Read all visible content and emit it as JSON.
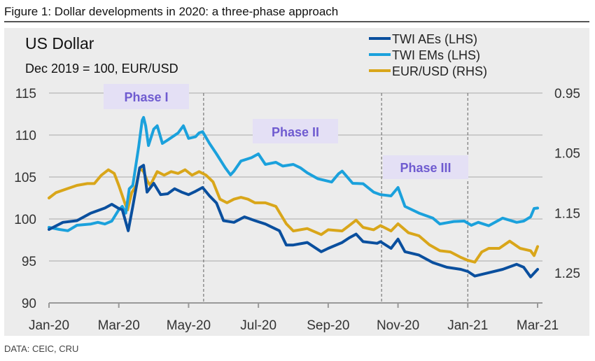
{
  "figure_title": "Figure 1: Dollar developments in 2020: a three-phase approach",
  "source": "DATA: CEIC, CRU",
  "colors": {
    "twi_aes": "#0a4f9e",
    "twi_ems": "#1ba1dc",
    "eurusd": "#d9a61a",
    "phase_box": "#e4e0f5",
    "phase_text": "#6f5bd0",
    "background": "#ececec"
  },
  "chart_data": {
    "type": "line",
    "title": "US Dollar",
    "subtitle": "Dec 2019 = 100, EUR/USD",
    "x_unit": "months since Jan-2020",
    "x_tick_labels": [
      "Jan-20",
      "Mar-20",
      "May-20",
      "Jul-20",
      "Sep-20",
      "Nov-20",
      "Jan-21",
      "Mar-21"
    ],
    "x_ticks": [
      0,
      2,
      4,
      6,
      8,
      10,
      12,
      14
    ],
    "xlim": [
      0,
      14
    ],
    "y_left": {
      "ticks": [
        90,
        95,
        100,
        105,
        110,
        115
      ],
      "tick_labels": [
        "90",
        "95",
        "100",
        "105",
        "110",
        "115"
      ],
      "ylim": [
        90,
        115
      ]
    },
    "y_right": {
      "ticks": [
        0.95,
        1.05,
        1.15,
        1.25
      ],
      "tick_labels": [
        "0.95",
        "1.05",
        "1.15",
        "1.25"
      ],
      "ylim": [
        0.95,
        1.3
      ],
      "inverted": true
    },
    "grid": true,
    "legend_position": "top-right",
    "legend": [
      "TWI AEs (LHS)",
      "TWI EMs (LHS)",
      "EUR/USD (RHS)"
    ],
    "phase_dividers": [
      4.43,
      9.53,
      12.0
    ],
    "annotations": [
      "Phase I",
      "Phase II",
      "Phase III"
    ],
    "series": [
      {
        "name": "TWI AEs (LHS)",
        "axis": "left",
        "points": [
          [
            0,
            98.75
          ],
          [
            0.4,
            99.6
          ],
          [
            0.8,
            99.8
          ],
          [
            1.2,
            100.7
          ],
          [
            1.6,
            101.3
          ],
          [
            1.8,
            101.75
          ],
          [
            2.0,
            101.25
          ],
          [
            2.1,
            101.1
          ],
          [
            2.27,
            98.6
          ],
          [
            2.4,
            101.5
          ],
          [
            2.6,
            106.1
          ],
          [
            2.71,
            106.4
          ],
          [
            2.81,
            103.2
          ],
          [
            3.0,
            104.25
          ],
          [
            3.2,
            102.9
          ],
          [
            3.4,
            103
          ],
          [
            3.6,
            103.6
          ],
          [
            3.8,
            103.2
          ],
          [
            4.0,
            102.9
          ],
          [
            4.2,
            103.3
          ],
          [
            4.4,
            103.75
          ],
          [
            4.6,
            102.75
          ],
          [
            4.8,
            101.9
          ],
          [
            5.0,
            99.8
          ],
          [
            5.3,
            99.6
          ],
          [
            5.6,
            100.25
          ],
          [
            5.9,
            99.8
          ],
          [
            6.2,
            99.4
          ],
          [
            6.6,
            98.6
          ],
          [
            6.8,
            96.9
          ],
          [
            7.0,
            96.9
          ],
          [
            7.4,
            97.2
          ],
          [
            7.8,
            96.1
          ],
          [
            8.0,
            96.5
          ],
          [
            8.4,
            97.2
          ],
          [
            8.6,
            97.75
          ],
          [
            8.8,
            98.2
          ],
          [
            9.0,
            97.3
          ],
          [
            9.4,
            97.1
          ],
          [
            9.5,
            97.3
          ],
          [
            9.8,
            96.5
          ],
          [
            10.0,
            97.6
          ],
          [
            10.2,
            96.1
          ],
          [
            10.6,
            95.7
          ],
          [
            11.0,
            94.8
          ],
          [
            11.4,
            94.25
          ],
          [
            11.8,
            94
          ],
          [
            12.0,
            93.75
          ],
          [
            12.2,
            93.2
          ],
          [
            12.6,
            93.6
          ],
          [
            13.0,
            94
          ],
          [
            13.4,
            94.6
          ],
          [
            13.6,
            94.25
          ],
          [
            13.8,
            93.1
          ],
          [
            14.0,
            94
          ]
        ]
      },
      {
        "name": "TWI EMs (LHS)",
        "axis": "left",
        "points": [
          [
            0,
            99.0
          ],
          [
            0.3,
            98.75
          ],
          [
            0.54,
            98.6
          ],
          [
            0.8,
            99.25
          ],
          [
            1.2,
            99.4
          ],
          [
            1.4,
            99.6
          ],
          [
            1.6,
            99.4
          ],
          [
            1.8,
            99.75
          ],
          [
            2.0,
            101.1
          ],
          [
            2.1,
            101.5
          ],
          [
            2.2,
            100.7
          ],
          [
            2.3,
            103.6
          ],
          [
            2.4,
            104
          ],
          [
            2.57,
            108.6
          ],
          [
            2.67,
            111.75
          ],
          [
            2.71,
            112.1
          ],
          [
            2.77,
            111.1
          ],
          [
            2.85,
            108.75
          ],
          [
            3.0,
            110.7
          ],
          [
            3.1,
            111.1
          ],
          [
            3.25,
            109
          ],
          [
            3.4,
            109.4
          ],
          [
            3.7,
            110.25
          ],
          [
            3.85,
            111.1
          ],
          [
            4.0,
            109.6
          ],
          [
            4.2,
            109.8
          ],
          [
            4.3,
            110.25
          ],
          [
            4.4,
            110.4
          ],
          [
            4.6,
            109
          ],
          [
            4.8,
            107.75
          ],
          [
            5.05,
            106.1
          ],
          [
            5.2,
            105.25
          ],
          [
            5.3,
            105.7
          ],
          [
            5.5,
            106.9
          ],
          [
            5.8,
            107.3
          ],
          [
            6.0,
            107.75
          ],
          [
            6.2,
            106.5
          ],
          [
            6.5,
            106.75
          ],
          [
            6.7,
            106.3
          ],
          [
            7.0,
            106.5
          ],
          [
            7.2,
            106.1
          ],
          [
            7.4,
            105.5
          ],
          [
            7.7,
            104.8
          ],
          [
            7.9,
            104.6
          ],
          [
            8.1,
            104.4
          ],
          [
            8.3,
            105.4
          ],
          [
            8.4,
            105.7
          ],
          [
            8.7,
            104.25
          ],
          [
            9.0,
            104.2
          ],
          [
            9.3,
            103.2
          ],
          [
            9.5,
            102.9
          ],
          [
            9.8,
            102.75
          ],
          [
            10.0,
            103.75
          ],
          [
            10.2,
            101.5
          ],
          [
            10.6,
            100.7
          ],
          [
            11.0,
            100.1
          ],
          [
            11.2,
            99.4
          ],
          [
            11.6,
            99.7
          ],
          [
            11.9,
            99.75
          ],
          [
            12.1,
            99.25
          ],
          [
            12.3,
            99.6
          ],
          [
            12.6,
            99.2
          ],
          [
            13.0,
            100.1
          ],
          [
            13.4,
            99.6
          ],
          [
            13.6,
            99.75
          ],
          [
            13.8,
            100.25
          ],
          [
            13.9,
            101.25
          ],
          [
            14.0,
            101.3
          ]
        ]
      },
      {
        "name": "EUR/USD (RHS)",
        "axis": "right",
        "points": [
          [
            0,
            1.125
          ],
          [
            0.2,
            1.116
          ],
          [
            0.5,
            1.11
          ],
          [
            0.8,
            1.104
          ],
          [
            1.1,
            1.101
          ],
          [
            1.3,
            1.101
          ],
          [
            1.5,
            1.087
          ],
          [
            1.7,
            1.078
          ],
          [
            1.87,
            1.084
          ],
          [
            2.0,
            1.104
          ],
          [
            2.17,
            1.133
          ],
          [
            2.25,
            1.145
          ],
          [
            2.37,
            1.116
          ],
          [
            2.5,
            1.104
          ],
          [
            2.6,
            1.075
          ],
          [
            2.71,
            1.081
          ],
          [
            2.81,
            1.096
          ],
          [
            2.9,
            1.104
          ],
          [
            3.1,
            1.081
          ],
          [
            3.3,
            1.087
          ],
          [
            3.5,
            1.081
          ],
          [
            3.7,
            1.084
          ],
          [
            3.9,
            1.078
          ],
          [
            4.1,
            1.087
          ],
          [
            4.3,
            1.081
          ],
          [
            4.5,
            1.087
          ],
          [
            4.7,
            1.098
          ],
          [
            4.9,
            1.127
          ],
          [
            5.1,
            1.133
          ],
          [
            5.3,
            1.127
          ],
          [
            5.5,
            1.124
          ],
          [
            5.7,
            1.127
          ],
          [
            5.9,
            1.133
          ],
          [
            6.2,
            1.133
          ],
          [
            6.5,
            1.139
          ],
          [
            6.8,
            1.168
          ],
          [
            7.0,
            1.18
          ],
          [
            7.4,
            1.176
          ],
          [
            7.8,
            1.186
          ],
          [
            8.0,
            1.178
          ],
          [
            8.4,
            1.18
          ],
          [
            8.6,
            1.171
          ],
          [
            8.8,
            1.162
          ],
          [
            9.0,
            1.174
          ],
          [
            9.3,
            1.178
          ],
          [
            9.5,
            1.171
          ],
          [
            9.8,
            1.18
          ],
          [
            10.0,
            1.168
          ],
          [
            10.3,
            1.183
          ],
          [
            10.6,
            1.188
          ],
          [
            10.9,
            1.203
          ],
          [
            11.2,
            1.213
          ],
          [
            11.5,
            1.215
          ],
          [
            11.8,
            1.224
          ],
          [
            12.0,
            1.229
          ],
          [
            12.2,
            1.232
          ],
          [
            12.4,
            1.215
          ],
          [
            12.6,
            1.209
          ],
          [
            12.9,
            1.209
          ],
          [
            13.2,
            1.197
          ],
          [
            13.5,
            1.209
          ],
          [
            13.8,
            1.213
          ],
          [
            13.9,
            1.221
          ],
          [
            14.0,
            1.206
          ]
        ]
      }
    ]
  }
}
